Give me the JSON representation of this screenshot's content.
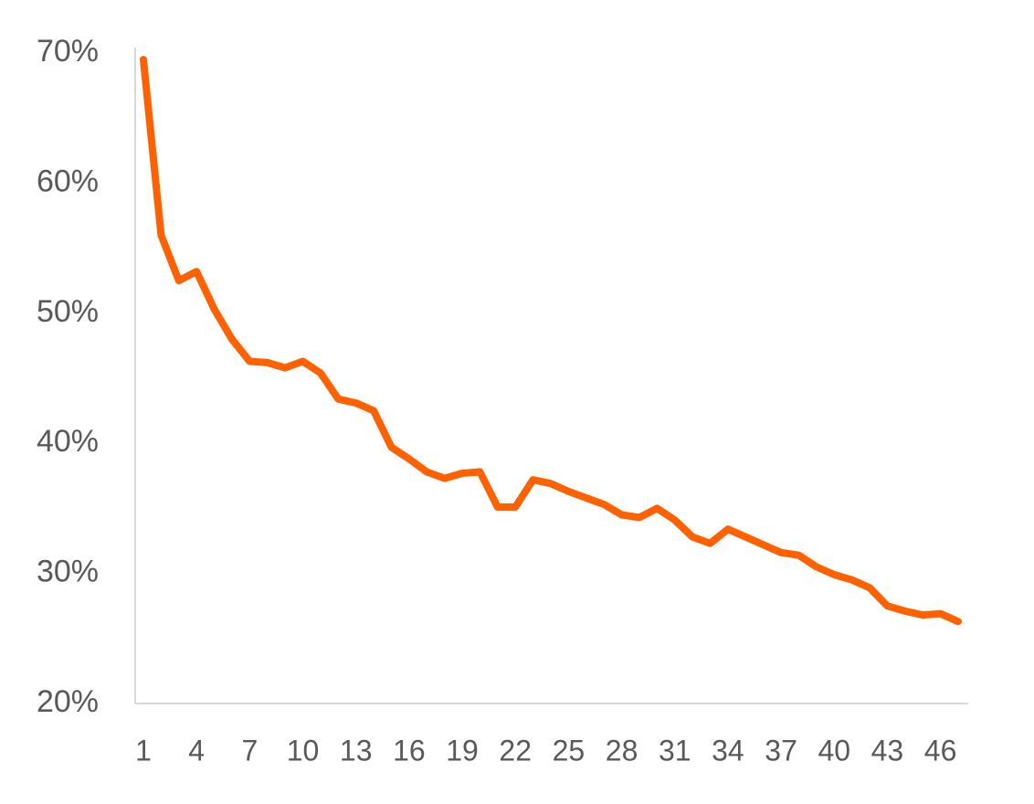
{
  "chart_data": {
    "type": "line",
    "categories": [
      "1",
      null,
      null,
      "4",
      null,
      null,
      "7",
      null,
      null,
      "10",
      null,
      null,
      "13",
      null,
      null,
      "16",
      null,
      null,
      "19",
      null,
      null,
      "22",
      null,
      null,
      "25",
      null,
      null,
      "28",
      null,
      null,
      "31",
      null,
      null,
      "34",
      null,
      null,
      "37",
      null,
      null,
      "40",
      null,
      null,
      "43",
      null,
      null,
      "46",
      null
    ],
    "series": [
      {
        "color": "#ff6000",
        "values": [
          69.5,
          56,
          52.5,
          53.2,
          50.3,
          48,
          46.3,
          46.2,
          45.8,
          46.3,
          45.4,
          43.4,
          43.1,
          42.5,
          39.7,
          38.8,
          37.8,
          37.3,
          37.7,
          37.8,
          35.1,
          35.1,
          37.2,
          36.9,
          36.3,
          35.8,
          35.3,
          34.5,
          34.3,
          35,
          34.1,
          32.8,
          32.3,
          33.4,
          32.8,
          32.2,
          31.6,
          31.4,
          30.5,
          29.9,
          29.5,
          28.9,
          27.5,
          27.1,
          26.8,
          26.9,
          26.3
        ]
      }
    ],
    "ylim": [
      20,
      70
    ],
    "yticks": [
      {
        "value": 20,
        "label": "20%"
      },
      {
        "value": 30,
        "label": "30%"
      },
      {
        "value": 40,
        "label": "40%"
      },
      {
        "value": 50,
        "label": "50%"
      },
      {
        "value": 60,
        "label": "60%"
      },
      {
        "value": 70,
        "label": "70%"
      }
    ],
    "grid": false
  }
}
